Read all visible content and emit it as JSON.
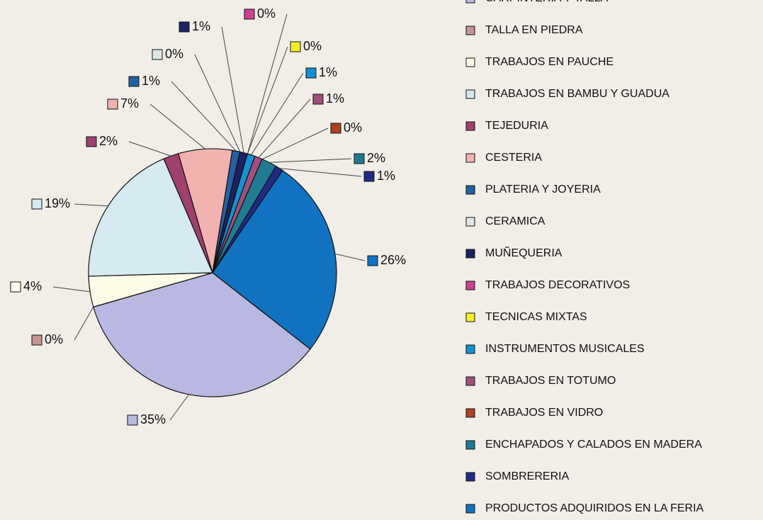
{
  "chart_data": {
    "type": "pie",
    "categories": [
      "CARPINTERIA Y TALLA",
      "TALLA EN PIEDRA",
      "TRABAJOS EN PAUCHE",
      "TRABAJOS EN BAMBU Y GUADUA",
      "TEJEDURIA",
      "CESTERIA",
      "PLATERIA Y JOYERIA",
      "CERAMICA",
      "MUÑEQUERIA",
      "TRABAJOS DECORATIVOS",
      "TECNICAS MIXTAS",
      "INSTRUMENTOS MUSICALES",
      "TRABAJOS EN TOTUMO",
      "TRABAJOS EN VIDRO",
      "ENCHAPADOS Y CALADOS EN MADERA",
      "SOMBRERERIA",
      "PRODUCTOS ADQUIRIDOS EN LA FERIA"
    ],
    "values": [
      35,
      0,
      4,
      19,
      2,
      7,
      1,
      0,
      1,
      0,
      0,
      1,
      1,
      0,
      2,
      1,
      26
    ],
    "value_labels": [
      "35%",
      "0%",
      "4%",
      "19%",
      "2%",
      "7%",
      "1%",
      "0%",
      "1%",
      "0%",
      "0%",
      "1%",
      "1%",
      "0%",
      "2%",
      "1%",
      "26%"
    ],
    "colors": [
      "#b8b8e2",
      "#c89494",
      "#fbfbe8",
      "#d6eaf2",
      "#a0406e",
      "#f2b2b0",
      "#2262a2",
      "#dfe8e6",
      "#1c2262",
      "#d04092",
      "#f6ee24",
      "#1492d2",
      "#a0507a",
      "#b04022",
      "#207a92",
      "#222a84",
      "#1272c2"
    ],
    "legend": "right"
  }
}
